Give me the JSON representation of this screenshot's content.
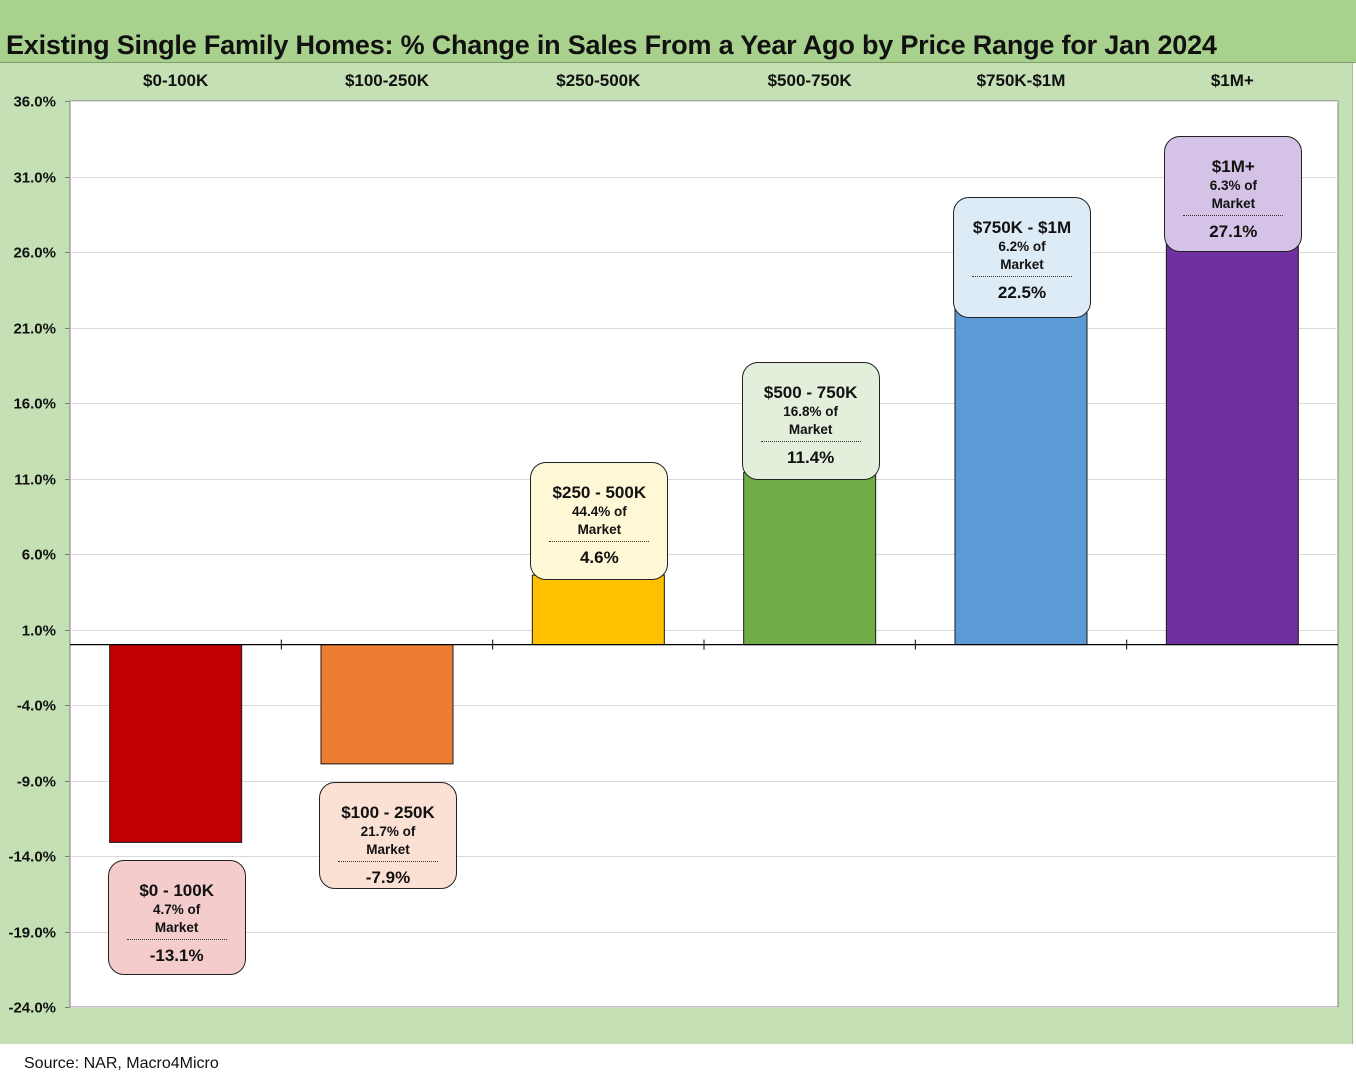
{
  "title": "Existing Single Family Homes: % Change in Sales From a Year Ago by Price Range for Jan 2024",
  "source": "Source: NAR, Macro4Micro",
  "chart_data": {
    "type": "bar",
    "categories": [
      "$0-100K",
      "$100-250K",
      "$250-500K",
      "$500-750K",
      "$750K-$1M",
      "$1M+"
    ],
    "values": [
      -13.1,
      -7.9,
      4.6,
      11.4,
      22.5,
      27.1
    ],
    "colors": [
      "#c00000",
      "#ed7d31",
      "#ffc000",
      "#70ad47",
      "#5b9bd5",
      "#7030a0"
    ],
    "ylim": [
      -24.0,
      36.0
    ],
    "yticks": [
      "36.0%",
      "31.0%",
      "26.0%",
      "21.0%",
      "16.0%",
      "11.0%",
      "6.0%",
      "1.0%",
      "-4.0%",
      "-9.0%",
      "-14.0%",
      "-19.0%",
      "-24.0%"
    ],
    "ytick_values": [
      36,
      31,
      26,
      21,
      16,
      11,
      6,
      1,
      -4,
      -9,
      -14,
      -19,
      -24
    ],
    "grid": true,
    "category_axis_position": "top",
    "annotations": [
      {
        "title": "$0 - 100K",
        "share": "4.7% of Market",
        "value": "-13.1%",
        "fill": "#f4cccc"
      },
      {
        "title": "$100 - 250K",
        "share": "21.7% of Market",
        "value": "-7.9%",
        "fill": "#fbe0d4"
      },
      {
        "title": "$250 - 500K",
        "share": "44.4% of Market",
        "value": "4.6%",
        "fill": "#fff8d6"
      },
      {
        "title": "$500 - 750K",
        "share": "16.8% of Market",
        "value": "11.4%",
        "fill": "#e2efda"
      },
      {
        "title": "$750K - $1M",
        "share": "6.2% of Market",
        "value": "22.5%",
        "fill": "#ddebf7"
      },
      {
        "title": "$1M+",
        "share": "6.3% of Market",
        "value": "27.1%",
        "fill": "#d4c3e6"
      }
    ]
  }
}
